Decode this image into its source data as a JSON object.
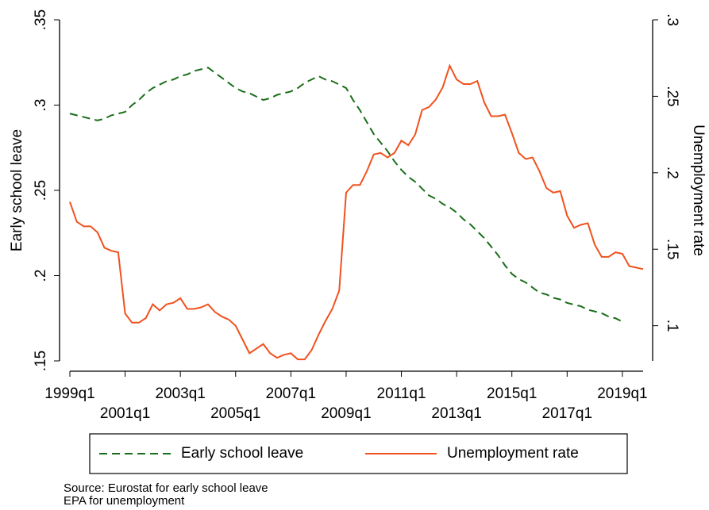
{
  "chart_data": {
    "type": "line",
    "y_label": "Early school leave",
    "y2_label": "Unemployment rate",
    "categories": [
      "1999q1",
      null,
      null,
      null,
      null,
      null,
      null,
      null,
      "2001q1",
      null,
      null,
      null,
      null,
      null,
      null,
      null,
      "2003q1",
      null,
      null,
      null,
      null,
      null,
      null,
      null,
      "2005q1",
      null,
      null,
      null,
      null,
      null,
      null,
      null,
      "2007q1",
      null,
      null,
      null,
      null,
      null,
      null,
      null,
      "2009q1",
      null,
      null,
      null,
      null,
      null,
      null,
      null,
      "2011q1",
      null,
      null,
      null,
      null,
      null,
      null,
      null,
      "2013q1",
      null,
      null,
      null,
      null,
      null,
      null,
      null,
      "2015q1",
      null,
      null,
      null,
      null,
      null,
      null,
      null,
      "2017q1",
      null,
      null,
      null,
      null,
      null,
      null,
      null,
      "2019q1",
      null,
      null,
      null
    ],
    "series": [
      {
        "name": "Early school leave",
        "color": "#1a6e1a",
        "dash": true,
        "values": [
          0.295,
          0.294,
          0.293,
          0.292,
          0.291,
          0.292,
          0.294,
          0.295,
          0.296,
          0.3,
          0.303,
          0.307,
          0.31,
          0.312,
          0.314,
          0.315,
          0.317,
          0.318,
          0.32,
          0.321,
          0.322,
          0.319,
          0.316,
          0.313,
          0.31,
          0.308,
          0.307,
          0.305,
          0.303,
          0.304,
          0.306,
          0.307,
          0.308,
          0.31,
          0.313,
          0.315,
          0.317,
          0.315,
          0.314,
          0.312,
          0.31,
          0.303,
          0.297,
          0.29,
          0.283,
          0.278,
          0.273,
          0.267,
          0.262,
          0.258,
          0.255,
          0.251,
          0.247,
          0.245,
          0.242,
          0.24,
          0.237,
          0.233,
          0.23,
          0.226,
          0.222,
          0.217,
          0.212,
          0.206,
          0.201,
          0.198,
          0.196,
          0.193,
          0.19,
          0.189,
          0.187,
          0.186,
          0.184,
          0.183,
          0.182,
          0.18,
          0.179,
          0.178,
          0.176,
          0.175,
          0.173,
          null,
          null,
          null
        ]
      },
      {
        "name": "Unemployment rate",
        "color": "#f0521e",
        "axis": "y2",
        "values": [
          0.181,
          0.168,
          0.165,
          0.165,
          0.161,
          0.151,
          0.149,
          0.148,
          0.108,
          0.102,
          0.102,
          0.105,
          0.114,
          0.11,
          0.114,
          0.115,
          0.118,
          0.111,
          0.111,
          0.112,
          0.114,
          0.109,
          0.106,
          0.104,
          0.1,
          0.091,
          0.082,
          0.085,
          0.088,
          0.082,
          0.079,
          0.081,
          0.082,
          0.078,
          0.078,
          0.084,
          0.094,
          0.103,
          0.111,
          0.123,
          0.187,
          0.192,
          0.192,
          0.201,
          0.212,
          0.213,
          0.21,
          0.213,
          0.221,
          0.218,
          0.225,
          0.241,
          0.243,
          0.248,
          0.256,
          0.27,
          0.261,
          0.258,
          0.258,
          0.26,
          0.246,
          0.237,
          0.237,
          0.238,
          0.226,
          0.213,
          0.209,
          0.21,
          0.201,
          0.19,
          0.187,
          0.188,
          0.172,
          0.164,
          0.166,
          0.167,
          0.153,
          0.145,
          0.145,
          0.148,
          0.147,
          0.139,
          0.138,
          0.137
        ]
      }
    ],
    "ylim": [
      0.15,
      0.35
    ],
    "yticks": [
      {
        "value": 0.15,
        "label": ".15"
      },
      {
        "value": 0.2,
        "label": ".2"
      },
      {
        "value": 0.25,
        "label": ".25"
      },
      {
        "value": 0.3,
        "label": ".3"
      },
      {
        "value": 0.35,
        "label": ".35"
      }
    ],
    "y2lim": [
      0.077,
      0.3
    ],
    "y2ticks": [
      {
        "value": 0.1,
        "label": ".1"
      },
      {
        "value": 0.15,
        "label": ".15"
      },
      {
        "value": 0.2,
        "label": ".2"
      },
      {
        "value": 0.25,
        "label": ".25"
      },
      {
        "value": 0.3,
        "label": ".3"
      }
    ],
    "legend": "bottom",
    "notes": [
      "Source: Eurostat for early school leave",
      "EPA for unemployment"
    ]
  }
}
